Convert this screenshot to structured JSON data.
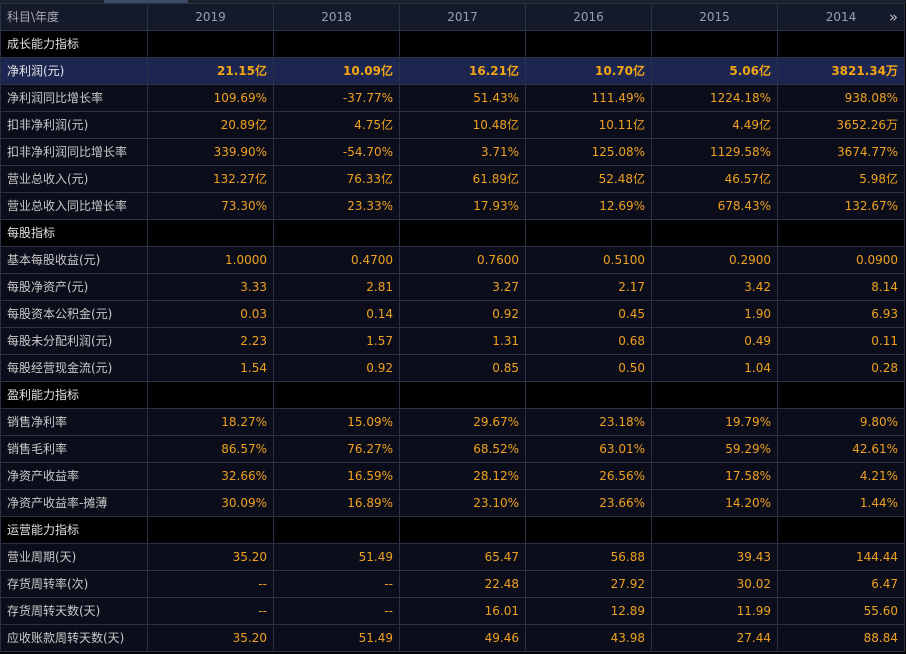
{
  "header": {
    "corner_label": "科目\\年度",
    "years": [
      "2019",
      "2018",
      "2017",
      "2016",
      "2015",
      "2014"
    ],
    "more_icon": "double-chevron-right-icon"
  },
  "sections": [
    {
      "title": "成长能力指标",
      "rows": [
        {
          "label": "净利润(元)",
          "highlight": true,
          "values": [
            "21.15亿",
            "10.09亿",
            "16.21亿",
            "10.70亿",
            "5.06亿",
            "3821.34万"
          ]
        },
        {
          "label": "净利润同比增长率",
          "values": [
            "109.69%",
            "-37.77%",
            "51.43%",
            "111.49%",
            "1224.18%",
            "938.08%"
          ]
        },
        {
          "label": "扣非净利润(元)",
          "values": [
            "20.89亿",
            "4.75亿",
            "10.48亿",
            "10.11亿",
            "4.49亿",
            "3652.26万"
          ]
        },
        {
          "label": "扣非净利润同比增长率",
          "values": [
            "339.90%",
            "-54.70%",
            "3.71%",
            "125.08%",
            "1129.58%",
            "3674.77%"
          ]
        },
        {
          "label": "营业总收入(元)",
          "values": [
            "132.27亿",
            "76.33亿",
            "61.89亿",
            "52.48亿",
            "46.57亿",
            "5.98亿"
          ]
        },
        {
          "label": "营业总收入同比增长率",
          "values": [
            "73.30%",
            "23.33%",
            "17.93%",
            "12.69%",
            "678.43%",
            "132.67%"
          ]
        }
      ]
    },
    {
      "title": "每股指标",
      "rows": [
        {
          "label": "基本每股收益(元)",
          "values": [
            "1.0000",
            "0.4700",
            "0.7600",
            "0.5100",
            "0.2900",
            "0.0900"
          ]
        },
        {
          "label": "每股净资产(元)",
          "values": [
            "3.33",
            "2.81",
            "3.27",
            "2.17",
            "3.42",
            "8.14"
          ]
        },
        {
          "label": "每股资本公积金(元)",
          "values": [
            "0.03",
            "0.14",
            "0.92",
            "0.45",
            "1.90",
            "6.93"
          ]
        },
        {
          "label": "每股未分配利润(元)",
          "values": [
            "2.23",
            "1.57",
            "1.31",
            "0.68",
            "0.49",
            "0.11"
          ]
        },
        {
          "label": "每股经营现金流(元)",
          "values": [
            "1.54",
            "0.92",
            "0.85",
            "0.50",
            "1.04",
            "0.28"
          ]
        }
      ]
    },
    {
      "title": "盈利能力指标",
      "rows": [
        {
          "label": "销售净利率",
          "values": [
            "18.27%",
            "15.09%",
            "29.67%",
            "23.18%",
            "19.79%",
            "9.80%"
          ]
        },
        {
          "label": "销售毛利率",
          "values": [
            "86.57%",
            "76.27%",
            "68.52%",
            "63.01%",
            "59.29%",
            "42.61%"
          ]
        },
        {
          "label": "净资产收益率",
          "values": [
            "32.66%",
            "16.59%",
            "28.12%",
            "26.56%",
            "17.58%",
            "4.21%"
          ]
        },
        {
          "label": "净资产收益率-摊薄",
          "values": [
            "30.09%",
            "16.89%",
            "23.10%",
            "23.66%",
            "14.20%",
            "1.44%"
          ]
        }
      ]
    },
    {
      "title": "运营能力指标",
      "rows": [
        {
          "label": "营业周期(天)",
          "values": [
            "35.20",
            "51.49",
            "65.47",
            "56.88",
            "39.43",
            "144.44"
          ]
        },
        {
          "label": "存货周转率(次)",
          "values": [
            "--",
            "--",
            "22.48",
            "27.92",
            "30.02",
            "6.47"
          ]
        },
        {
          "label": "存货周转天数(天)",
          "values": [
            "--",
            "--",
            "16.01",
            "12.89",
            "11.99",
            "55.60"
          ]
        },
        {
          "label": "应收账款周转天数(天)",
          "values": [
            "35.20",
            "51.49",
            "49.46",
            "43.98",
            "27.44",
            "88.84"
          ]
        }
      ]
    }
  ]
}
